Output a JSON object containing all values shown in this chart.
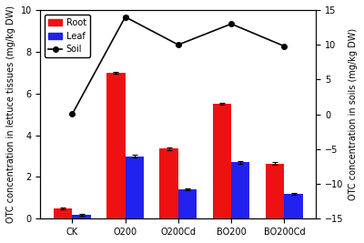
{
  "categories": [
    "CK",
    "O200",
    "O200Cd",
    "BO200",
    "BO200Cd"
  ],
  "root_values": [
    0.48,
    7.0,
    3.35,
    5.5,
    2.65
  ],
  "root_errors": [
    0.04,
    0.05,
    0.05,
    0.04,
    0.05
  ],
  "leaf_values": [
    0.2,
    3.0,
    1.4,
    2.7,
    1.2
  ],
  "leaf_errors": [
    0.05,
    0.07,
    0.04,
    0.05,
    0.04
  ],
  "soil_values": [
    0.05,
    14.0,
    10.0,
    13.0,
    9.8
  ],
  "soil_errors": [
    0.05,
    0.15,
    0.15,
    0.15,
    0.15
  ],
  "root_color": "#EE1111",
  "leaf_color": "#2222EE",
  "soil_color": "#000000",
  "bar_width": 0.35,
  "ylim_left": [
    0.0,
    10.0
  ],
  "ylim_right": [
    -15.0,
    15.0
  ],
  "yticks_left": [
    0.0,
    2.0,
    4.0,
    6.0,
    8.0,
    10.0
  ],
  "yticks_right": [
    -15.0,
    -10.0,
    -5.0,
    0.0,
    5.0,
    10.0,
    15.0
  ],
  "ylabel_left": "OTC concentration in lettuce tissues (mg/kg DW)",
  "ylabel_right": "OTC concentration in soils (mg/kg DW)",
  "background_color": "#ffffff"
}
